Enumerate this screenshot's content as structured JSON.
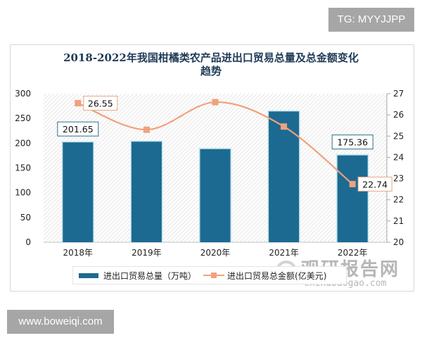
{
  "badges": {
    "top_right": "TG: MYYJJPP",
    "bottom_left": "www.boweiqi.com"
  },
  "colors": {
    "bar": "#1c6a91",
    "bar_outline": "#bfe3ee",
    "line": "#f0a17d",
    "title": "#1f3b57",
    "axis_text": "#222222"
  },
  "chart": {
    "title": "2018-2022年我国柑橘类农产品进出口贸易总量及总金额变化趋势",
    "title_line1": "2018-2022年我国柑橘类农产品进出口贸易总量及总金额变化",
    "title_line2": "趋势",
    "legend": {
      "bar_label": "进出口贸易总量（万吨）",
      "line_label": "进出口贸易总金额(亿美元)"
    },
    "watermark": {
      "cn": "观研报告网",
      "en": "chinabaogao.com"
    }
  },
  "chart_data": {
    "type": "bar",
    "title": "2018-2022年我国柑橘类农产品进出口贸易总量及总金额变化趋势",
    "categories": [
      "2018年",
      "2019年",
      "2020年",
      "2021年",
      "2022年"
    ],
    "series": [
      {
        "name": "进出口贸易总量（万吨）",
        "type": "bar",
        "axis": "left",
        "values": [
          201.65,
          203,
          188,
          264,
          175.36
        ],
        "data_labels": [
          "201.65",
          null,
          null,
          null,
          "175.36"
        ]
      },
      {
        "name": "进出口贸易总金额(亿美元)",
        "type": "line",
        "axis": "right",
        "smooth": true,
        "values": [
          26.55,
          25.3,
          26.6,
          25.45,
          22.74
        ],
        "data_labels": [
          "26.55",
          null,
          null,
          null,
          "22.74"
        ]
      }
    ],
    "y_left": {
      "ticks": [
        "0",
        "50",
        "100",
        "150",
        "200",
        "250",
        "300"
      ],
      "ylim": [
        0,
        300
      ]
    },
    "y_right": {
      "ticks": [
        "20",
        "21",
        "22",
        "23",
        "24",
        "25",
        "26",
        "27"
      ],
      "ylim": [
        20,
        27
      ]
    },
    "xlabel": "",
    "ylabel": "",
    "grid": false,
    "legend_position": "bottom"
  }
}
